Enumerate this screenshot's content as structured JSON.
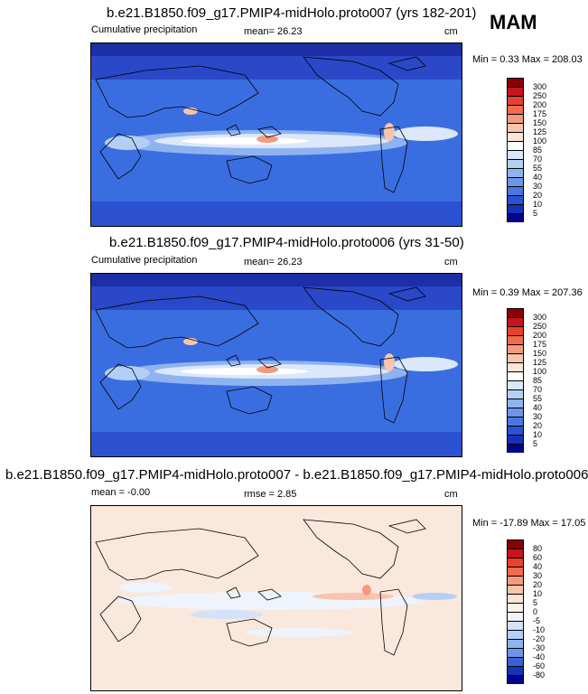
{
  "season": "MAM",
  "panels": [
    {
      "title": "b.e21.B1850.f09_g17.PMIP4-midHolo.proto007 (yrs 182-201)",
      "left_label": "Cumulative precipitation",
      "center_label": "mean=  26.23",
      "units": "cm",
      "minmax": "Min =  0.33 Max = 208.03",
      "palette": "precip"
    },
    {
      "title": "b.e21.B1850.f09_g17.PMIP4-midHolo.proto006 (yrs 31-50)",
      "left_label": "Cumulative precipitation",
      "center_label": "mean=  26.23",
      "units": "cm",
      "minmax": "Min =  0.39 Max = 207.36",
      "palette": "precip"
    },
    {
      "title": "b.e21.B1850.f09_g17.PMIP4-midHolo.proto007 - b.e21.B1850.f09_g17.PMIP4-midHolo.proto006",
      "left_label": "mean =  -0.00",
      "center_label": "rmse =   2.85",
      "units": "cm",
      "minmax": "Min = -17.89 Max =  17.05",
      "palette": "diff"
    }
  ],
  "colorbars": {
    "precip": {
      "labels": [
        "300",
        "250",
        "200",
        "175",
        "150",
        "125",
        "100",
        "85",
        "70",
        "55",
        "40",
        "30",
        "20",
        "10",
        "5"
      ],
      "colors": [
        "#8b0000",
        "#c8141e",
        "#e8412d",
        "#f26b4d",
        "#f59a7e",
        "#f8c4ad",
        "#fbe3d6",
        "#ffffff",
        "#dbe7fb",
        "#b4cff6",
        "#8fb3ef",
        "#6d95e8",
        "#4b75e0",
        "#2a53d4",
        "#1632b8",
        "#00058c"
      ]
    },
    "diff": {
      "labels": [
        "80",
        "60",
        "40",
        "30",
        "20",
        "10",
        "5",
        "0",
        "-5",
        "-10",
        "-20",
        "-30",
        "-40",
        "-60",
        "-80"
      ],
      "colors": [
        "#8b0000",
        "#c8141e",
        "#e8412d",
        "#f26b4d",
        "#f59a7e",
        "#f8c4ad",
        "#fbe3d6",
        "#fdf0e8",
        "#eef3fc",
        "#d4e1f8",
        "#b4cff6",
        "#8fb3ef",
        "#6d95e8",
        "#3a60d8",
        "#1632b8",
        "#00058c"
      ]
    }
  }
}
